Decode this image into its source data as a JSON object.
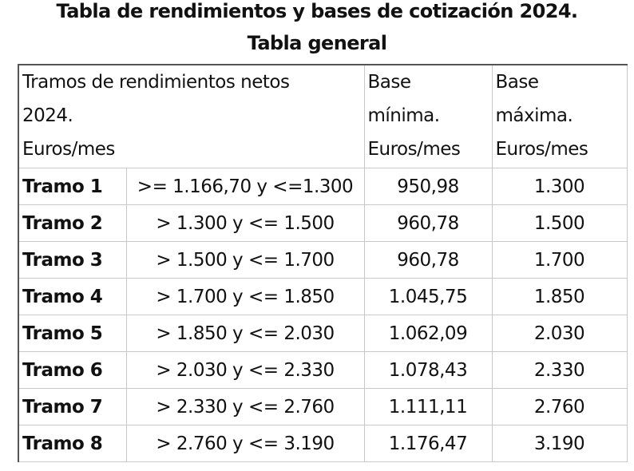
{
  "header": {
    "title": "Tabla de rendimientos y bases de cotización 2024.",
    "subtitle": "Tabla general"
  },
  "table": {
    "columns": [
      [
        "Tramos de rendimientos netos",
        "2024.",
        "Euros/mes"
      ],
      [
        "Base",
        "mínima.",
        "Euros/mes"
      ],
      [
        "Base",
        "máxima.",
        "Euros/mes"
      ]
    ],
    "rows": [
      [
        "Tramo 1",
        ">= 1.166,70 y <=1.300",
        "950,98",
        "1.300"
      ],
      [
        "Tramo 2",
        "> 1.300 y <= 1.500",
        "960,78",
        "1.500"
      ],
      [
        "Tramo 3",
        "> 1.500 y <= 1.700",
        "960,78",
        "1.700"
      ],
      [
        "Tramo 4",
        "> 1.700 y <= 1.850",
        "1.045,75",
        "1.850"
      ],
      [
        "Tramo 5",
        "> 1.850 y <= 2.030",
        "1.062,09",
        "2.030"
      ],
      [
        "Tramo 6",
        "> 2.030 y <= 2.330",
        "1.078,43",
        "2.330"
      ],
      [
        "Tramo 7",
        "> 2.330 y <= 2.760",
        "1.111,11",
        "2.760"
      ],
      [
        "Tramo 8",
        "> 2.760 y <= 3.190",
        "1.176,47",
        "3.190"
      ]
    ]
  }
}
